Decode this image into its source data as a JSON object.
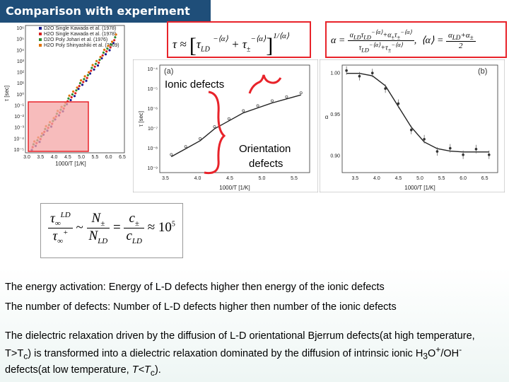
{
  "title": "Comparison with experiment",
  "left_plot": {
    "legend": [
      {
        "text": "D2O Single Kawada et al. (1978)",
        "color": "#1a1a8c"
      },
      {
        "text": "H2O Single Kawada et al. (1978)",
        "color": "#d62020"
      },
      {
        "text": "D2O Poly   Johari et al. (1976)",
        "color": "#2e8b2e"
      },
      {
        "text": "H2O Poly   Shinyashiki et al. (2009)",
        "color": "#e07000"
      }
    ],
    "ytick_labels": [
      "10⁶",
      "10⁵",
      "10⁴",
      "10³",
      "10²",
      "10¹",
      "10⁰",
      "10⁻¹",
      "10⁻²",
      "10⁻³",
      "10⁻⁴",
      "10⁻⁵"
    ],
    "xtick_labels": [
      "3.0",
      "3.5",
      "4.0",
      "4.5",
      "5.0",
      "5.5",
      "6.0",
      "6.5"
    ],
    "xlabel": "1000/T  [1/K]",
    "ylabel": "τ [sec]"
  },
  "panel_a": {
    "tag": "(a)",
    "ylabel": "τ [sec]",
    "xlabel": "1000/T  [1/K]",
    "ytick_labels": [
      "10⁻⁴",
      "10⁻⁵",
      "10⁻⁶",
      "10⁻⁷",
      "10⁻⁸",
      "10⁻⁹"
    ],
    "xtick_labels": [
      "3.5",
      "4.0",
      "4.5",
      "5.0",
      "5.5"
    ],
    "curve": {
      "x": [
        3.5,
        3.75,
        4.0,
        4.25,
        4.5,
        4.75,
        5.0,
        5.25,
        5.5,
        5.75
      ],
      "y_log10": [
        -8.4,
        -8.0,
        -7.6,
        -7.0,
        -6.6,
        -6.2,
        -5.95,
        -5.7,
        -5.5,
        -5.3
      ]
    }
  },
  "panel_b": {
    "tag": "(b)",
    "ylabel": "α",
    "xlabel": "1000/T  [1/K]",
    "ytick_labels": [
      "1.00",
      "0.95",
      "0.90"
    ],
    "xtick_labels": [
      "3.5",
      "4.0",
      "4.5",
      "5.0",
      "5.5",
      "6.0",
      "6.5"
    ],
    "curve": {
      "x": [
        3.3,
        3.6,
        3.9,
        4.2,
        4.5,
        4.8,
        5.1,
        5.4,
        5.7,
        6.0,
        6.3,
        6.6
      ],
      "y": [
        1.0,
        1.0,
        0.997,
        0.985,
        0.96,
        0.935,
        0.917,
        0.909,
        0.906,
        0.905,
        0.905,
        0.905
      ]
    }
  },
  "annotations": {
    "ionic": "Ionic defects",
    "orient_1": "Orientation",
    "orient_2": "defects"
  },
  "equations": {
    "tau_approx_lhs": "τ ≈",
    "tau_LD": "τ",
    "tau_LD_sub": "LD",
    "power_frac": "1/⟨α⟩",
    "alpha_lhs": "α =",
    "alpha_avg": "⟨α⟩ =",
    "alpha_avg_den": "2",
    "ratio_approx": "≈ 10",
    "ratio_exp": "5"
  },
  "paragraphs": [
    "The energy activation:  Energy of L-D defects higher then energy of the ionic defects",
    "The number of defects: Number of L-D defects higher then number of the ionic defects"
  ],
  "final_paragraph": {
    "p1": "The dielectric relaxation driven by the diffusion of L-D orientational Bjerrum defects(at high temperature, T>T",
    "sub_c1": "c",
    "p2": ") is transformed into a dielectric relaxation dominated by the diffusion of intrinsic ionic H",
    "sub_3": "3",
    "p3": "O",
    "sup_plus": "+",
    "p4": "/OH",
    "sup_minus": "-",
    "p5": " defects(at low temperature, ",
    "italic_T": "T<T",
    "sub_c2": "c",
    "p6": ")."
  },
  "colors": {
    "title_bg": "#1f4e79",
    "highlight_box": "#e8232a",
    "highlight_fill": "#f4a6a6",
    "equation_box": "#e8232a"
  }
}
